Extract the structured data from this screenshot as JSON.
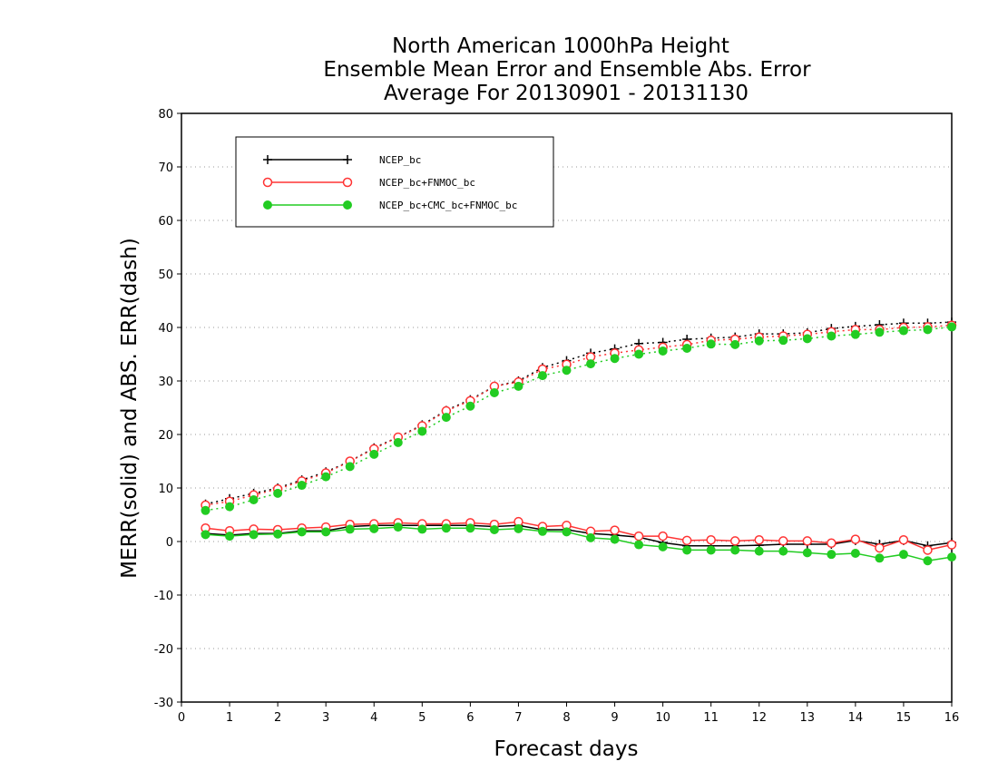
{
  "chart_data": {
    "type": "line",
    "title_lines": [
      "North American 1000hPa Height",
      "Ensemble Mean Error and Ensemble Abs. Error",
      "Average For 20130901 - 20131130"
    ],
    "xlabel": "Forecast days",
    "ylabel": "MERR(solid) and ABS. ERR(dash)",
    "xlim": [
      0,
      16
    ],
    "ylim": [
      -30,
      80
    ],
    "xticks": [
      0,
      1,
      2,
      3,
      4,
      5,
      6,
      7,
      8,
      9,
      10,
      11,
      12,
      13,
      14,
      15,
      16
    ],
    "yticks": [
      -30,
      -20,
      -10,
      0,
      10,
      20,
      30,
      40,
      50,
      60,
      70,
      80
    ],
    "grid": "dotted horizontal",
    "legend_position": "top-left",
    "x": [
      0.5,
      1,
      1.5,
      2,
      2.5,
      3,
      3.5,
      4,
      4.5,
      5,
      5.5,
      6,
      6.5,
      7,
      7.5,
      8,
      8.5,
      9,
      9.5,
      10,
      10.5,
      11,
      11.5,
      12,
      12.5,
      13,
      13.5,
      14,
      14.5,
      15,
      15.5,
      16
    ],
    "series": [
      {
        "name": "NCEP_bc",
        "color": "#000000",
        "marker": "plus",
        "merr": [
          1.5,
          1.2,
          1.5,
          1.5,
          2,
          2,
          2.8,
          3,
          3,
          3,
          3,
          3,
          2.8,
          3,
          2.2,
          2.2,
          1.5,
          1.2,
          0.8,
          -0.2,
          -0.8,
          -0.8,
          -0.8,
          -0.7,
          -0.5,
          -0.5,
          -0.5,
          0.2,
          -0.5,
          0.2,
          -0.8,
          -0.2
        ],
        "abs_err": [
          7,
          8,
          9,
          10,
          11.5,
          13,
          15,
          17.5,
          19.5,
          21.8,
          24.5,
          26.5,
          29,
          30,
          32.5,
          33.8,
          35.2,
          36,
          37,
          37.2,
          37.8,
          38,
          38.2,
          38.8,
          38.8,
          39,
          39.8,
          40.2,
          40.5,
          40.8,
          40.8,
          41
        ]
      },
      {
        "name": "NCEP_bc+FNMOC_bc",
        "color": "#ff3333",
        "marker": "open-circle",
        "merr": [
          2.5,
          2,
          2.3,
          2.2,
          2.5,
          2.7,
          3.2,
          3.3,
          3.5,
          3.3,
          3.3,
          3.5,
          3.2,
          3.7,
          2.8,
          3,
          1.9,
          2.1,
          1,
          1,
          0.2,
          0.3,
          0.1,
          0.3,
          0.1,
          0.1,
          -0.3,
          0.4,
          -1.2,
          0.3,
          -1.6,
          -0.6
        ],
        "abs_err": [
          6.8,
          7.5,
          8.7,
          9.8,
          11.3,
          12.8,
          15,
          17.3,
          19.5,
          21.6,
          24.4,
          26.3,
          29,
          29.8,
          32.2,
          33.1,
          34.5,
          35.2,
          35.8,
          36.3,
          36.8,
          37.6,
          37.8,
          38.2,
          38.4,
          38.7,
          39.2,
          39.6,
          39.6,
          40,
          40.1,
          40.4
        ]
      },
      {
        "name": "NCEP_bc+CMC_bc+FNMOC_bc",
        "color": "#22cc22",
        "marker": "filled-circle",
        "merr": [
          1.3,
          1,
          1.3,
          1.4,
          1.8,
          1.8,
          2.3,
          2.4,
          2.7,
          2.3,
          2.5,
          2.5,
          2.2,
          2.4,
          1.9,
          1.8,
          0.7,
          0.4,
          -0.6,
          -1,
          -1.6,
          -1.6,
          -1.6,
          -1.8,
          -1.8,
          -2.1,
          -2.4,
          -2.2,
          -3.1,
          -2.4,
          -3.6,
          -2.9
        ],
        "abs_err": [
          5.8,
          6.5,
          7.8,
          9,
          10.5,
          12.1,
          14,
          16.3,
          18.5,
          20.6,
          23.2,
          25.3,
          27.8,
          29,
          31,
          32,
          33.2,
          34.2,
          35,
          35.6,
          36.1,
          36.9,
          36.8,
          37.5,
          37.6,
          37.9,
          38.4,
          38.7,
          39.1,
          39.4,
          39.6,
          40.1
        ]
      }
    ]
  }
}
